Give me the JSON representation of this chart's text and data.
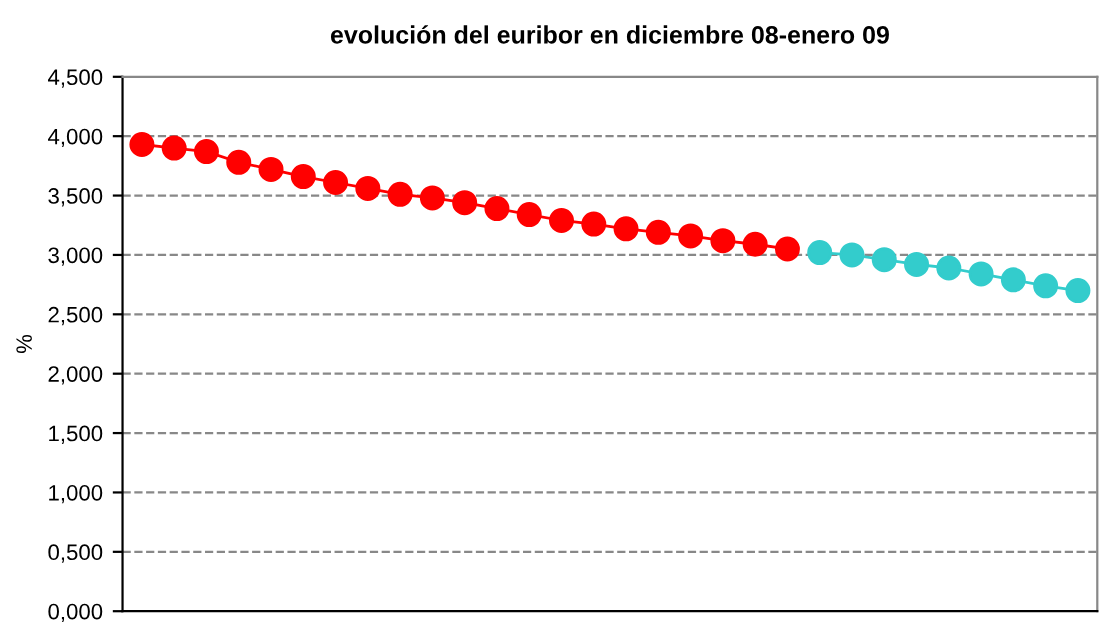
{
  "chart_data": {
    "type": "line",
    "title": "evolución del euribor en diciembre 08-enero 09",
    "ylabel": "%",
    "categories": [
      null,
      null,
      null,
      null,
      null,
      null,
      null,
      null,
      null,
      null,
      null,
      null,
      null,
      null,
      null,
      null,
      null,
      null,
      null,
      null,
      null,
      null,
      null,
      null,
      null,
      null,
      null,
      null,
      null,
      null
    ],
    "series": [
      {
        "color": "#ff0000",
        "values": [
          3.93,
          3.9,
          3.87,
          3.78,
          3.72,
          3.66,
          3.61,
          3.56,
          3.51,
          3.48,
          3.44,
          3.39,
          3.34,
          3.29,
          3.26,
          3.22,
          3.19,
          3.16,
          3.12,
          3.09,
          3.05,
          null,
          null,
          null,
          null,
          null,
          null,
          null,
          null,
          null
        ]
      },
      {
        "color": "#33cccc",
        "values": [
          null,
          null,
          null,
          null,
          null,
          null,
          null,
          null,
          null,
          null,
          null,
          null,
          null,
          null,
          null,
          null,
          null,
          null,
          null,
          null,
          null,
          3.02,
          3.0,
          2.96,
          2.92,
          2.89,
          2.84,
          2.79,
          2.74,
          2.7
        ]
      }
    ],
    "ylim": [
      0,
      4.5
    ],
    "yticks": [
      {
        "value": 0,
        "label": "0,000"
      },
      {
        "value": 0.5,
        "label": "0,500"
      },
      {
        "value": 1,
        "label": "1,000"
      },
      {
        "value": 1.5,
        "label": "1,500"
      },
      {
        "value": 2,
        "label": "2,000"
      },
      {
        "value": 2.5,
        "label": "2,500"
      },
      {
        "value": 3,
        "label": "3,000"
      },
      {
        "value": 3.5,
        "label": "3,500"
      },
      {
        "value": 4,
        "label": "4,000"
      },
      {
        "value": 4.5,
        "label": "4,500"
      }
    ],
    "grid": "y",
    "marker": "circle",
    "line_style": "solid",
    "legend": false
  }
}
